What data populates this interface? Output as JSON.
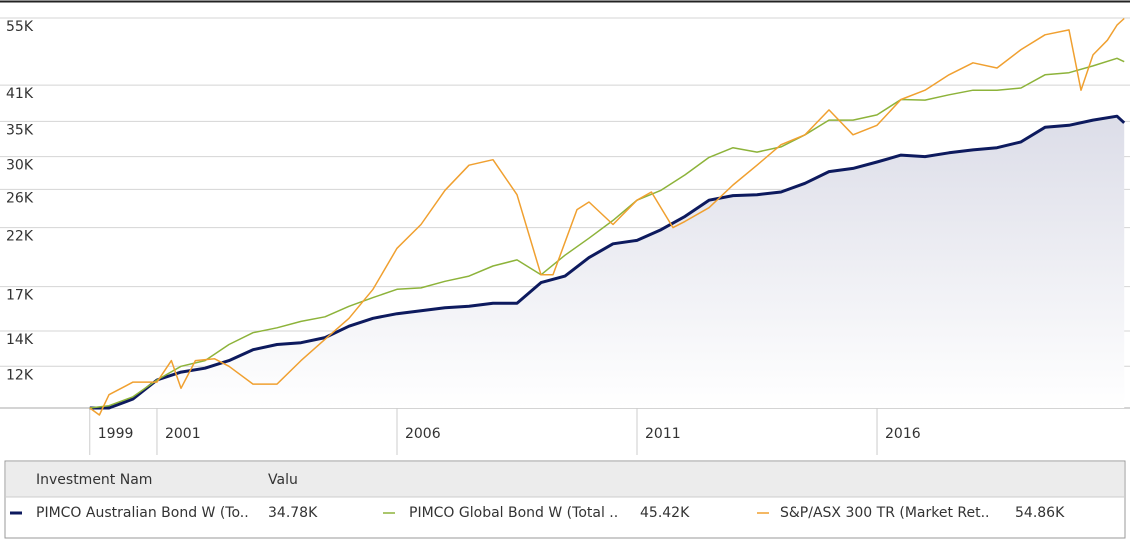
{
  "chart_data": {
    "type": "line",
    "log_y": true,
    "grid": true,
    "ylim": [
      10000,
      58200
    ],
    "yticks": [
      {
        "value": 12000,
        "label": "12K"
      },
      {
        "value": 14000,
        "label": "14K"
      },
      {
        "value": 17000,
        "label": "17K"
      },
      {
        "value": 22000,
        "label": "22K"
      },
      {
        "value": 26000,
        "label": "26K"
      },
      {
        "value": 30000,
        "label": "30K"
      },
      {
        "value": 35000,
        "label": "35K"
      },
      {
        "value": 41000,
        "label": "41K"
      },
      {
        "value": 55000,
        "label": "55K"
      }
    ],
    "xlim": [
      1997.73,
      2021.27
    ],
    "xticks": [
      {
        "value": 1999.6,
        "label": "1999"
      },
      2001,
      2006,
      2011,
      2016
    ],
    "table_headers": [
      "Investment Nam",
      "Valu"
    ],
    "series": [
      {
        "name": "PIMCO Australian Bond W (To..",
        "value_label": "34.78K",
        "color": "#0d1a5e",
        "area": true,
        "x": [
          1999.6,
          2000,
          2000.5,
          2001,
          2001.5,
          2002,
          2002.5,
          2003,
          2003.5,
          2004,
          2004.5,
          2005,
          2005.5,
          2006,
          2006.5,
          2007,
          2007.5,
          2008,
          2008.5,
          2009,
          2009.5,
          2010,
          2010.5,
          2011,
          2011.5,
          2012,
          2012.5,
          2013,
          2013.5,
          2014,
          2014.5,
          2015,
          2015.5,
          2016,
          2016.5,
          2017,
          2017.5,
          2018,
          2018.5,
          2019,
          2019.5,
          2020,
          2020.5,
          2021,
          2021.15
        ],
        "values": [
          10000,
          10000,
          10400,
          11300,
          11700,
          11900,
          12300,
          12900,
          13200,
          13300,
          13600,
          14300,
          14800,
          15100,
          15300,
          15500,
          15600,
          15800,
          15800,
          17300,
          17800,
          19300,
          20500,
          20800,
          21800,
          23100,
          24800,
          25300,
          25400,
          25700,
          26700,
          28100,
          28500,
          29300,
          30200,
          30000,
          30500,
          30900,
          31200,
          32000,
          34100,
          34400,
          35200,
          35800,
          34780
        ]
      },
      {
        "name": "PIMCO Global Bond W (Total ..",
        "value_label": "45.42K",
        "color": "#8db33a",
        "x": [
          1999.6,
          2000,
          2000.5,
          2001,
          2001.5,
          2002,
          2002.5,
          2003,
          2003.5,
          2004,
          2004.5,
          2005,
          2005.5,
          2006,
          2006.5,
          2007,
          2007.5,
          2008,
          2008.5,
          2009,
          2009.5,
          2010,
          2010.5,
          2011,
          2011.5,
          2012,
          2012.5,
          2013,
          2013.5,
          2014,
          2014.5,
          2015,
          2015.5,
          2016,
          2016.5,
          2017,
          2017.5,
          2018,
          2018.5,
          2019,
          2019.5,
          2020,
          2020.5,
          2021,
          2021.15
        ],
        "values": [
          10000,
          10100,
          10500,
          11300,
          12000,
          12300,
          13200,
          13900,
          14200,
          14600,
          14900,
          15600,
          16200,
          16800,
          16900,
          17400,
          17800,
          18600,
          19100,
          17900,
          19500,
          21000,
          22700,
          24800,
          25900,
          27700,
          29900,
          31200,
          30600,
          31300,
          33000,
          35200,
          35200,
          36000,
          38500,
          38400,
          39300,
          40100,
          40100,
          40500,
          42900,
          43300,
          44600,
          46100,
          45420
        ]
      },
      {
        "name": "S&P/ASX 300 TR (Market Ret..",
        "value_label": "54.86K",
        "color": "#f0a030",
        "x": [
          1999.6,
          1999.8,
          2000,
          2000.5,
          2001,
          2001.3,
          2001.5,
          2001.8,
          2002.2,
          2002.5,
          2003,
          2003.5,
          2004,
          2004.5,
          2005,
          2005.5,
          2006,
          2006.5,
          2007,
          2007.5,
          2008,
          2008.5,
          2009,
          2009.25,
          2009.75,
          2010,
          2010.5,
          2011,
          2011.3,
          2011.75,
          2012,
          2012.5,
          2013,
          2013.5,
          2014,
          2014.5,
          2015,
          2015.5,
          2016,
          2016.5,
          2017,
          2017.5,
          2018,
          2018.5,
          2019,
          2019.5,
          2020,
          2020.25,
          2020.5,
          2020.8,
          2021,
          2021.15
        ],
        "values": [
          10000,
          9700,
          10600,
          11200,
          11200,
          12300,
          10900,
          12300,
          12400,
          12000,
          11100,
          11100,
          12300,
          13500,
          14800,
          16800,
          20100,
          22300,
          25900,
          28900,
          29600,
          25400,
          17900,
          17900,
          23800,
          24600,
          22300,
          24800,
          25700,
          22000,
          22600,
          24000,
          26500,
          28900,
          31600,
          33000,
          36800,
          33000,
          34400,
          38500,
          40100,
          42900,
          45200,
          44200,
          47900,
          51100,
          52200,
          40100,
          46800,
          49900,
          53300,
          54860
        ]
      }
    ]
  }
}
